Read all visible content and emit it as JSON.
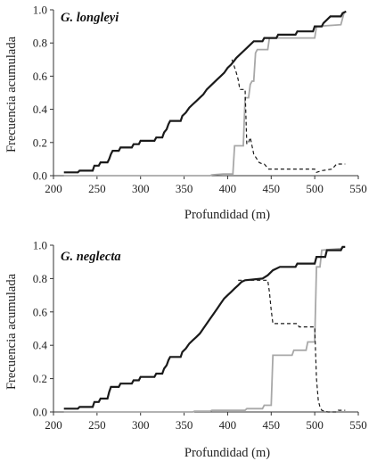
{
  "chart_data": [
    {
      "type": "line",
      "title": "G. longleyi",
      "xlabel": "Profundidad (m)",
      "ylabel": "Frecuencia acumulada",
      "xlim": [
        200,
        550
      ],
      "ylim": [
        0,
        1.0
      ],
      "xticks": [
        "200",
        "250",
        "300",
        "350",
        "400",
        "450",
        "500",
        "550"
      ],
      "yticks": [
        "0.0",
        "0.2",
        "0.4",
        "0.6",
        "0.8",
        "1.0"
      ],
      "grid": false,
      "legend": "none",
      "series": [
        {
          "style": "solid-black",
          "color": "#1a1a1a",
          "points": [
            [
              212,
              0.02
            ],
            [
              228,
              0.02
            ],
            [
              230,
              0.03
            ],
            [
              245,
              0.03
            ],
            [
              247,
              0.06
            ],
            [
              252,
              0.06
            ],
            [
              254,
              0.08
            ],
            [
              262,
              0.08
            ],
            [
              264,
              0.1
            ],
            [
              266,
              0.13
            ],
            [
              268,
              0.15
            ],
            [
              275,
              0.15
            ],
            [
              277,
              0.17
            ],
            [
              290,
              0.17
            ],
            [
              292,
              0.19
            ],
            [
              298,
              0.19
            ],
            [
              300,
              0.21
            ],
            [
              316,
              0.21
            ],
            [
              318,
              0.23
            ],
            [
              325,
              0.23
            ],
            [
              327,
              0.26
            ],
            [
              330,
              0.28
            ],
            [
              332,
              0.31
            ],
            [
              334,
              0.33
            ],
            [
              346,
              0.33
            ],
            [
              348,
              0.36
            ],
            [
              352,
              0.38
            ],
            [
              356,
              0.41
            ],
            [
              360,
              0.43
            ],
            [
              364,
              0.45
            ],
            [
              368,
              0.47
            ],
            [
              372,
              0.49
            ],
            [
              376,
              0.52
            ],
            [
              380,
              0.54
            ],
            [
              384,
              0.56
            ],
            [
              388,
              0.58
            ],
            [
              392,
              0.6
            ],
            [
              396,
              0.62
            ],
            [
              400,
              0.65
            ],
            [
              404,
              0.67
            ],
            [
              407,
              0.69
            ],
            [
              410,
              0.71
            ],
            [
              414,
              0.73
            ],
            [
              418,
              0.75
            ],
            [
              422,
              0.77
            ],
            [
              426,
              0.79
            ],
            [
              430,
              0.81
            ],
            [
              440,
              0.81
            ],
            [
              442,
              0.83
            ],
            [
              456,
              0.83
            ],
            [
              458,
              0.85
            ],
            [
              478,
              0.85
            ],
            [
              480,
              0.87
            ],
            [
              498,
              0.87
            ],
            [
              500,
              0.9
            ],
            [
              508,
              0.9
            ],
            [
              510,
              0.92
            ],
            [
              514,
              0.94
            ],
            [
              518,
              0.96
            ],
            [
              530,
              0.96
            ],
            [
              532,
              0.98
            ],
            [
              536,
              0.99
            ]
          ]
        },
        {
          "style": "solid-gray",
          "color": "#a8a8a8",
          "points": [
            [
              212,
              0.0
            ],
            [
              380,
              0.0
            ],
            [
              382,
              0.005
            ],
            [
              395,
              0.01
            ],
            [
              406,
              0.01
            ],
            [
              408,
              0.18
            ],
            [
              418,
              0.18
            ],
            [
              420,
              0.47
            ],
            [
              424,
              0.47
            ],
            [
              426,
              0.55
            ],
            [
              428,
              0.57
            ],
            [
              430,
              0.57
            ],
            [
              432,
              0.74
            ],
            [
              434,
              0.76
            ],
            [
              446,
              0.76
            ],
            [
              448,
              0.83
            ],
            [
              500,
              0.83
            ],
            [
              502,
              0.9
            ],
            [
              530,
              0.91
            ],
            [
              534,
              0.99
            ]
          ]
        },
        {
          "style": "dashed-black",
          "color": "#1a1a1a",
          "points": [
            [
              405,
              0.7
            ],
            [
              410,
              0.62
            ],
            [
              412,
              0.58
            ],
            [
              414,
              0.52
            ],
            [
              420,
              0.52
            ],
            [
              422,
              0.19
            ],
            [
              424,
              0.2
            ],
            [
              426,
              0.23
            ],
            [
              430,
              0.13
            ],
            [
              436,
              0.08
            ],
            [
              440,
              0.07
            ],
            [
              442,
              0.07
            ],
            [
              447,
              0.04
            ],
            [
              500,
              0.04
            ],
            [
              502,
              0.02
            ],
            [
              508,
              0.03
            ],
            [
              520,
              0.04
            ],
            [
              525,
              0.07
            ],
            [
              535,
              0.07
            ]
          ]
        }
      ]
    },
    {
      "type": "line",
      "title": "G. neglecta",
      "xlabel": "Profundidad (m)",
      "ylabel": "Frecuencia acumulada",
      "xlim": [
        200,
        550
      ],
      "ylim": [
        0,
        1.0
      ],
      "xticks": [
        "200",
        "250",
        "300",
        "350",
        "400",
        "450",
        "500",
        "550"
      ],
      "yticks": [
        "0.0",
        "0.2",
        "0.4",
        "0.6",
        "0.8",
        "1.0"
      ],
      "grid": false,
      "legend": "none",
      "series": [
        {
          "style": "solid-black",
          "color": "#1a1a1a",
          "points": [
            [
              212,
              0.02
            ],
            [
              228,
              0.02
            ],
            [
              230,
              0.03
            ],
            [
              245,
              0.03
            ],
            [
              247,
              0.06
            ],
            [
              252,
              0.06
            ],
            [
              254,
              0.08
            ],
            [
              262,
              0.08
            ],
            [
              264,
              0.12
            ],
            [
              266,
              0.15
            ],
            [
              275,
              0.15
            ],
            [
              277,
              0.17
            ],
            [
              290,
              0.17
            ],
            [
              292,
              0.19
            ],
            [
              298,
              0.19
            ],
            [
              300,
              0.21
            ],
            [
              316,
              0.21
            ],
            [
              318,
              0.23
            ],
            [
              325,
              0.23
            ],
            [
              327,
              0.26
            ],
            [
              330,
              0.28
            ],
            [
              332,
              0.31
            ],
            [
              334,
              0.33
            ],
            [
              346,
              0.33
            ],
            [
              348,
              0.36
            ],
            [
              352,
              0.38
            ],
            [
              356,
              0.41
            ],
            [
              360,
              0.43
            ],
            [
              364,
              0.45
            ],
            [
              368,
              0.47
            ],
            [
              372,
              0.5
            ],
            [
              376,
              0.53
            ],
            [
              380,
              0.56
            ],
            [
              384,
              0.59
            ],
            [
              388,
              0.62
            ],
            [
              392,
              0.65
            ],
            [
              396,
              0.68
            ],
            [
              400,
              0.7
            ],
            [
              404,
              0.72
            ],
            [
              408,
              0.74
            ],
            [
              412,
              0.76
            ],
            [
              416,
              0.78
            ],
            [
              420,
              0.79
            ],
            [
              440,
              0.8
            ],
            [
              446,
              0.82
            ],
            [
              452,
              0.85
            ],
            [
              460,
              0.87
            ],
            [
              478,
              0.87
            ],
            [
              480,
              0.89
            ],
            [
              500,
              0.89
            ],
            [
              502,
              0.93
            ],
            [
              512,
              0.93
            ],
            [
              514,
              0.97
            ],
            [
              530,
              0.97
            ],
            [
              532,
              0.99
            ],
            [
              535,
              0.99
            ]
          ]
        },
        {
          "style": "solid-gray",
          "color": "#a8a8a8",
          "points": [
            [
              212,
              0.0
            ],
            [
              360,
              0.0
            ],
            [
              362,
              0.005
            ],
            [
              380,
              0.005
            ],
            [
              382,
              0.01
            ],
            [
              420,
              0.01
            ],
            [
              422,
              0.02
            ],
            [
              440,
              0.02
            ],
            [
              442,
              0.04
            ],
            [
              450,
              0.04
            ],
            [
              452,
              0.34
            ],
            [
              474,
              0.34
            ],
            [
              476,
              0.37
            ],
            [
              490,
              0.37
            ],
            [
              492,
              0.42
            ],
            [
              500,
              0.42
            ],
            [
              502,
              0.87
            ],
            [
              506,
              0.87
            ],
            [
              508,
              0.97
            ],
            [
              530,
              0.98
            ],
            [
              534,
              0.99
            ]
          ]
        },
        {
          "style": "dashed-black",
          "color": "#1a1a1a",
          "points": [
            [
              412,
              0.79
            ],
            [
              440,
              0.79
            ],
            [
              446,
              0.79
            ],
            [
              448,
              0.72
            ],
            [
              450,
              0.61
            ],
            [
              452,
              0.53
            ],
            [
              480,
              0.53
            ],
            [
              482,
              0.51
            ],
            [
              500,
              0.51
            ],
            [
              502,
              0.2
            ],
            [
              504,
              0.07
            ],
            [
              506,
              0.03
            ],
            [
              508,
              0.01
            ],
            [
              515,
              0.0
            ],
            [
              525,
              0.0
            ],
            [
              527,
              0.01
            ],
            [
              535,
              0.01
            ]
          ]
        }
      ]
    }
  ]
}
